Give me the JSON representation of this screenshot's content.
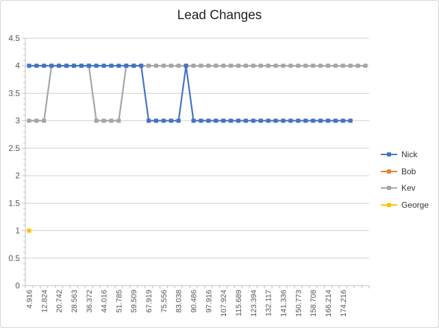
{
  "chart_data": {
    "type": "line",
    "title": "Lead Changes",
    "ylim": [
      0,
      4.5
    ],
    "yticks": [
      "0",
      "0.5",
      "1",
      "1.5",
      "2",
      "2.5",
      "3",
      "3.5",
      "4",
      "4.5"
    ],
    "x_tick_labels": [
      "4.916",
      "12.824",
      "20.742",
      "28.563",
      "36.372",
      "44.016",
      "51.785",
      "59.509",
      "67.919",
      "75.556",
      "83.038",
      "90.486",
      "97.916",
      "107.924",
      "115.689",
      "123.394",
      "132.117",
      "141.336",
      "150.773",
      "158.708",
      "166.214",
      "174.216"
    ],
    "category_count": 46,
    "grid": true,
    "legend_position": "right",
    "series": [
      {
        "name": "Nick",
        "color": "#4472c4",
        "values": [
          4,
          4,
          4,
          4,
          4,
          4,
          4,
          4,
          4,
          4,
          4,
          4,
          4,
          4,
          4,
          4,
          3,
          3,
          3,
          3,
          3,
          4,
          3,
          3,
          3,
          3,
          3,
          3,
          3,
          3,
          3,
          3,
          3,
          3,
          3,
          3,
          3,
          3,
          3,
          3,
          3,
          3,
          3,
          3,
          null,
          null
        ]
      },
      {
        "name": "Bob",
        "color": "#ed7d31",
        "values": []
      },
      {
        "name": "Kev",
        "color": "#a5a5a5",
        "values": [
          3,
          3,
          3,
          4,
          4,
          4,
          4,
          4,
          4,
          3,
          3,
          3,
          3,
          4,
          4,
          4,
          4,
          4,
          4,
          4,
          4,
          4,
          4,
          4,
          4,
          4,
          4,
          4,
          4,
          4,
          4,
          4,
          4,
          4,
          4,
          4,
          4,
          4,
          4,
          4,
          4,
          4,
          4,
          4,
          4,
          4
        ]
      },
      {
        "name": "George",
        "color": "#ffc000",
        "values": [
          1
        ]
      }
    ]
  }
}
